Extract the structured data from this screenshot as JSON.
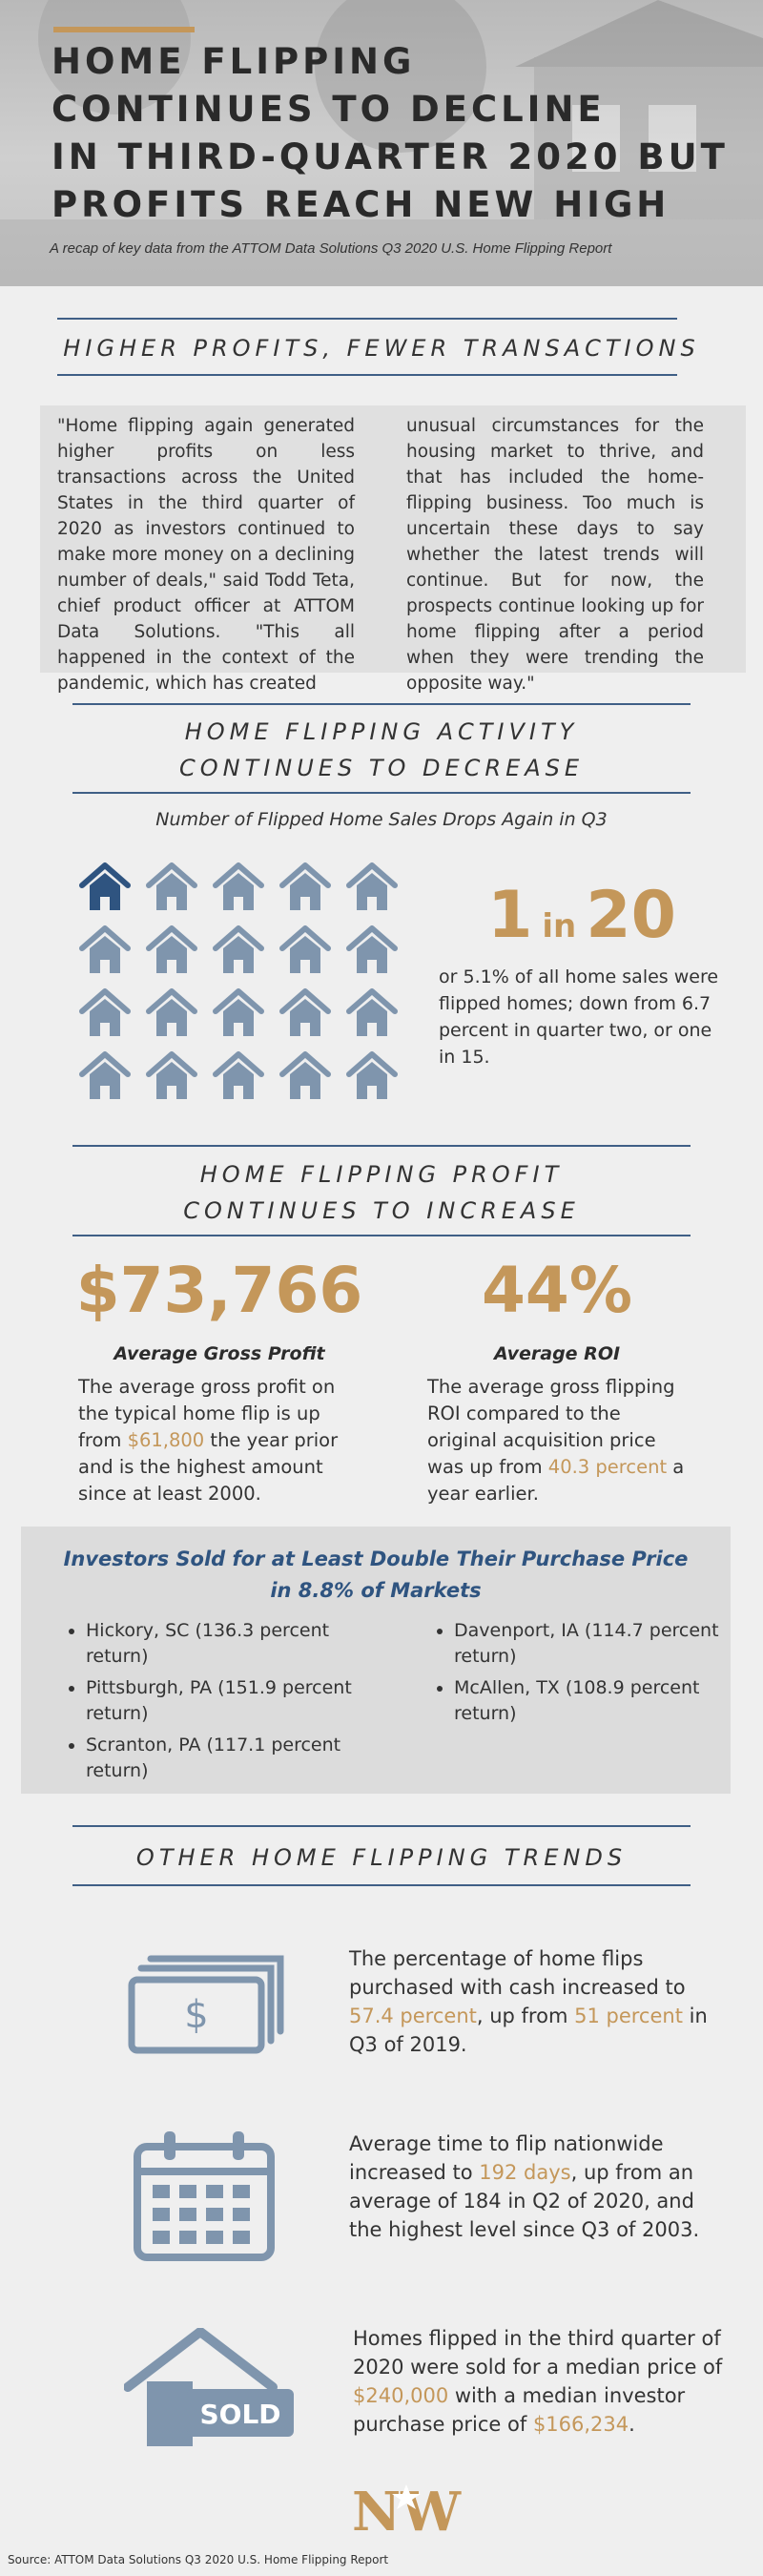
{
  "header": {
    "title_lines": [
      "HOME FLIPPING",
      "CONTINUES TO DECLINE",
      "IN THIRD-QUARTER 2020 BUT",
      "PROFITS REACH NEW HIGH"
    ],
    "subtitle": "A recap of key data from the ATTOM Data Solutions Q3 2020 U.S. Home Flipping Report"
  },
  "section1": {
    "title": "HIGHER PROFITS, FEWER TRANSACTIONS",
    "quote_left": "\"Home flipping again generated higher profits on less transactions across the United States in the third quarter of 2020 as investors continued to make more money on a declining number of deals,\" said Todd Teta, chief product officer at ATTOM Data Solutions. \"This all happened in the context of the pandemic, which has created",
    "quote_right": "unusual circumstances for the housing market to thrive, and that has included the home-flipping business. Too much is uncertain these days to say whether the latest trends will continue. But for now, the prospects continue looking up for home flipping after a period when they were trending the opposite way.\""
  },
  "section2": {
    "title_lines": [
      "HOME FLIPPING ACTIVITY",
      "CONTINUES TO DECREASE"
    ],
    "chart_subtitle": "Number of Flipped Home Sales Drops Again in Q3",
    "ratio_num": "1",
    "ratio_in": "in",
    "ratio_den": "20",
    "ratio_desc": "or 5.1% of all home sales were flipped homes; down from 6.7 percent in quarter two, or one in 15.",
    "colors": {
      "highlighted_house": "#2f5480",
      "house": "#7f95ad"
    }
  },
  "chart_data": {
    "type": "pictograph",
    "total_icons": 20,
    "highlighted_icons": 1,
    "rows": 4,
    "columns": 5
  },
  "section3": {
    "title_lines": [
      "HOME FLIPPING PROFIT",
      "CONTINUES TO INCREASE"
    ],
    "profit": {
      "value": "$73,766",
      "label": "Average Gross Profit",
      "desc_before": "The average gross profit on the typical home flip is up from ",
      "desc_highlight": "$61,800",
      "desc_after": " the year prior and is the highest amount since at least 2000."
    },
    "roi": {
      "value": "44%",
      "label": "Average ROI",
      "desc_before": "The average gross flipping ROI compared to the original acquisition price was up from ",
      "desc_highlight": "40.3 percent",
      "desc_after": " a year earlier."
    }
  },
  "markets": {
    "title_line1": "Investors Sold for at Least Double Their Purchase Price",
    "title_line2": "in 8.8% of Markets",
    "left": [
      "Hickory, SC (136.3 percent return)",
      "Pittsburgh, PA (151.9 percent return)",
      "Scranton, PA (117.1 percent return)"
    ],
    "right": [
      "Davenport, IA (114.7 percent return)",
      "McAllen, TX (108.9 percent return)"
    ]
  },
  "section4": {
    "title": "OTHER HOME FLIPPING TRENDS",
    "cash": {
      "icon": "cash-icon",
      "before": "The percentage of home flips purchased with cash increased to ",
      "hl1": "57.4 percent",
      "mid": ", up from ",
      "hl2": "51 percent",
      "after": " in Q3 of 2019."
    },
    "time": {
      "icon": "calendar-icon",
      "before": "Average time to flip nationwide increased to ",
      "hl1": "192 days",
      "after": ", up from an average of 184 in Q2 of 2020, and the highest level since Q3 of 2003."
    },
    "price": {
      "icon": "sold-house-icon",
      "sold_label": "SOLD",
      "before": "Homes flipped in the third quarter of 2020 were sold for a median price of ",
      "hl1": "$240,000",
      "mid": " with a median investor purchase price of ",
      "hl2": "$166,234",
      "after": "."
    }
  },
  "footer": {
    "logo_text": "NW",
    "source": "Source: ATTOM Data Solutions Q3 2020 U.S. Home Flipping Report"
  },
  "colors": {
    "accent_gold": "#c4975a",
    "rule_blue": "#3f5f86",
    "icon_gray": "#7f95ad",
    "title_blue": "#2f5480"
  }
}
